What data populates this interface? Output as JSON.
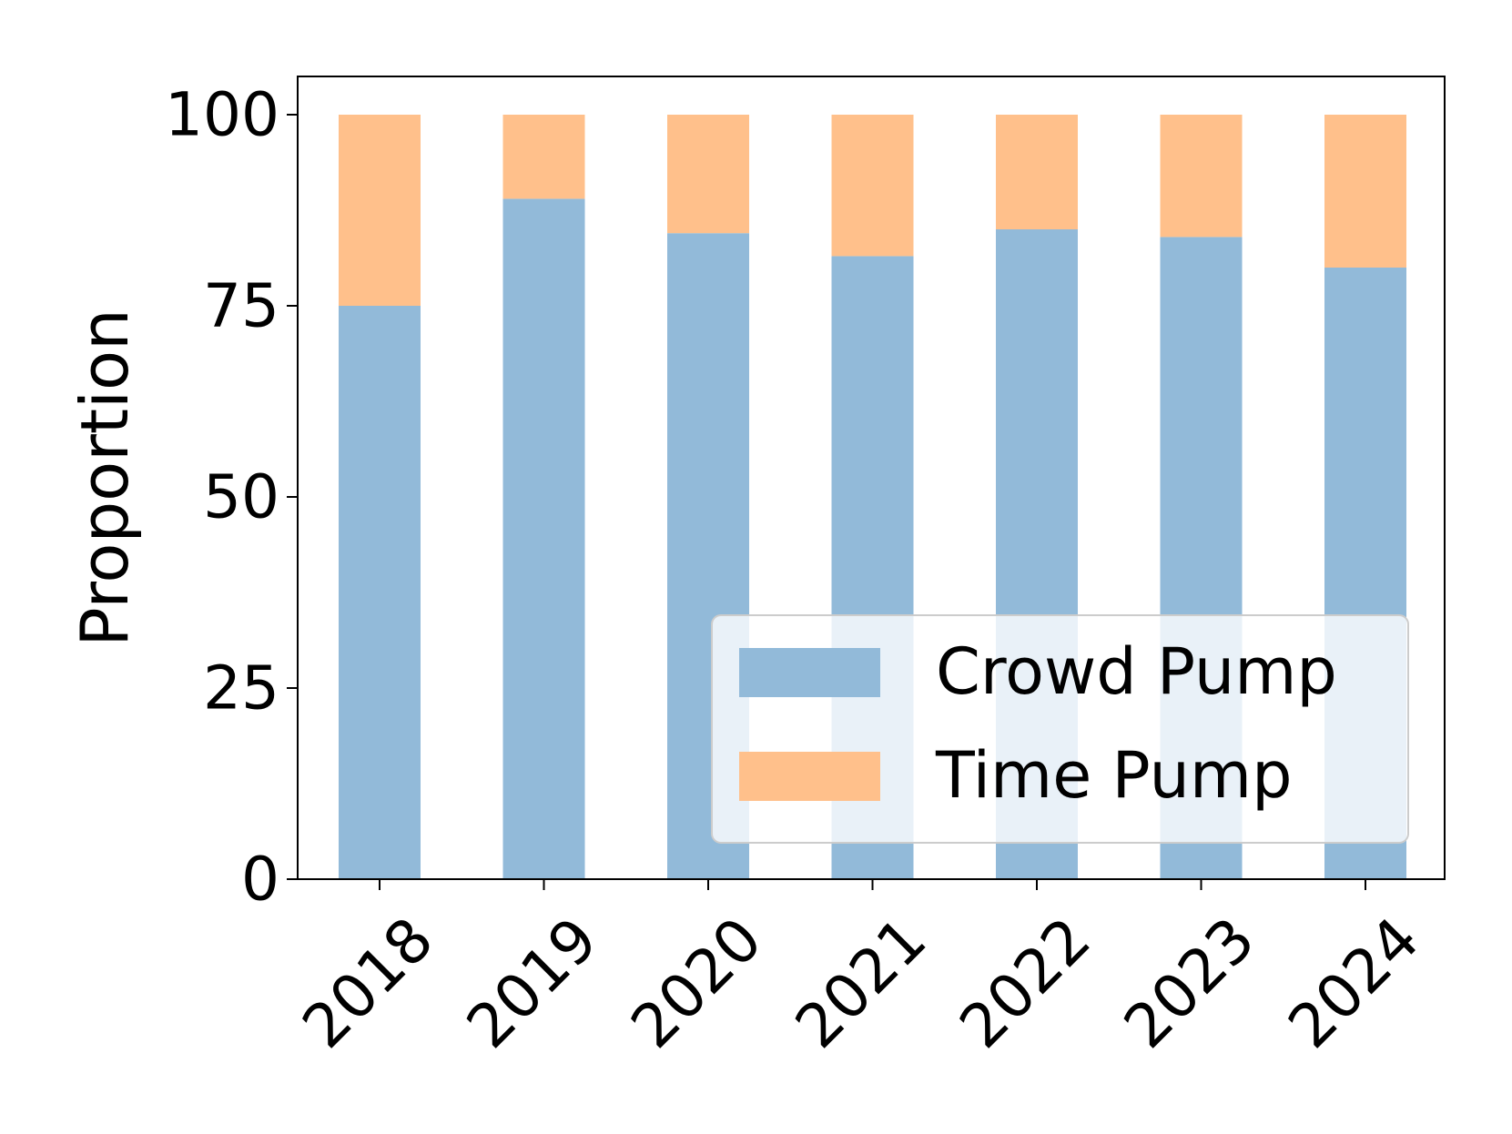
{
  "chart_data": {
    "type": "bar",
    "stacked": true,
    "title": "",
    "xlabel": "",
    "ylabel": "Proportion",
    "ylim": [
      0,
      105
    ],
    "yticks": [
      0,
      25,
      50,
      75,
      100
    ],
    "ytick_labels": [
      "0",
      "25",
      "50",
      "75",
      "100"
    ],
    "categories": [
      "2018",
      "2019",
      "2020",
      "2021",
      "2022",
      "2023",
      "2024"
    ],
    "series": [
      {
        "name": "Crowd Pump",
        "color": "#92BAD9",
        "values": [
          75,
          89,
          84.5,
          81.5,
          85,
          84,
          80
        ]
      },
      {
        "name": "Time Pump",
        "color": "#FFC08B",
        "values": [
          25,
          11,
          15.5,
          18.5,
          15,
          16,
          20
        ]
      }
    ],
    "legend": {
      "position": "lower-right",
      "entries": [
        "Crowd Pump",
        "Time Pump"
      ]
    }
  }
}
